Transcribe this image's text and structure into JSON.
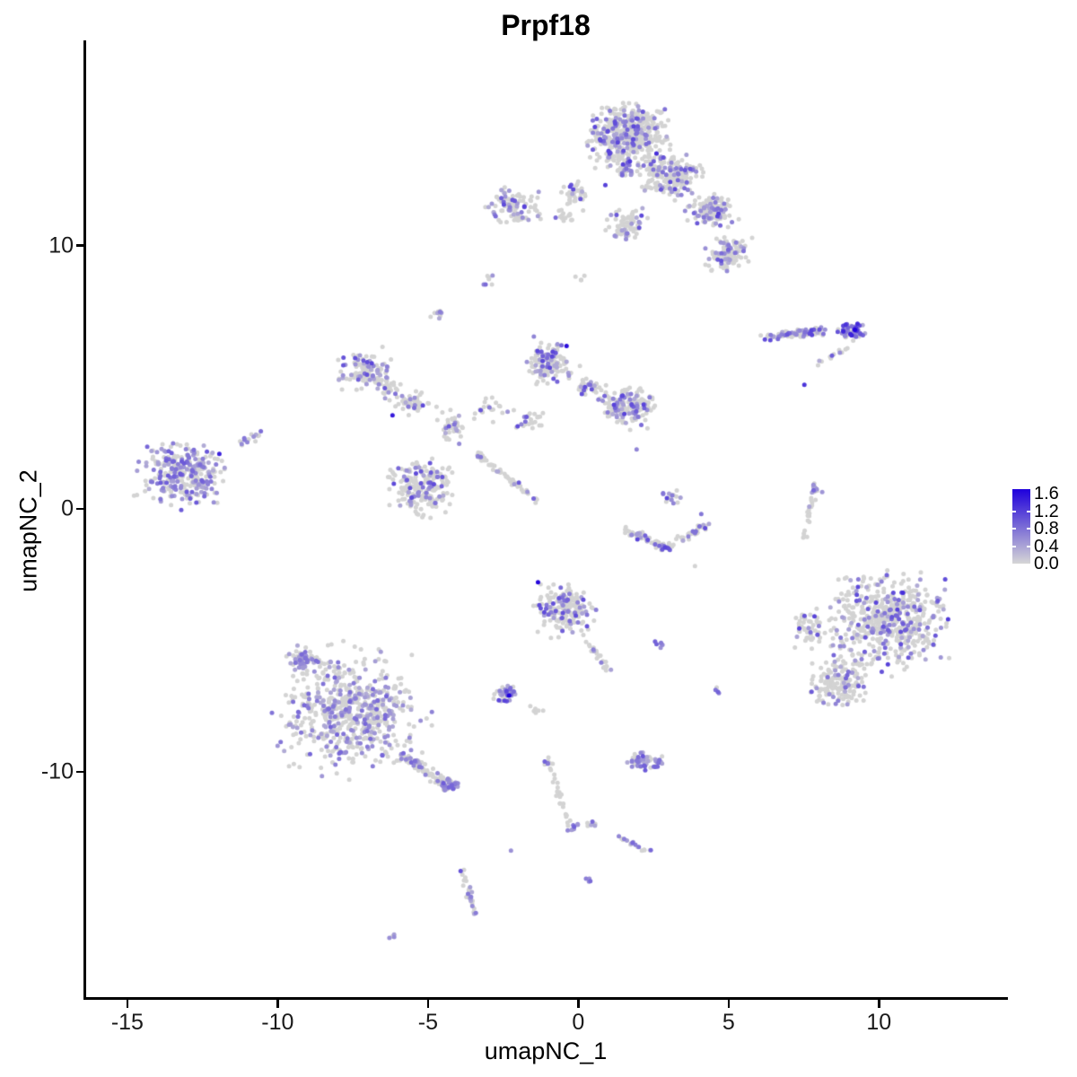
{
  "chart_data": {
    "type": "scatter",
    "title": "Prpf18",
    "xlabel": "umapNC_1",
    "ylabel": "umapNC_2",
    "xlim": [
      -16.4,
      14.2
    ],
    "ylim": [
      -18.6,
      17.8
    ],
    "grid": false,
    "x_ticks": [
      {
        "v": -15,
        "label": "-15"
      },
      {
        "v": -10,
        "label": "-10"
      },
      {
        "v": -5,
        "label": "-5"
      },
      {
        "v": 0,
        "label": "0"
      },
      {
        "v": 5,
        "label": "5"
      },
      {
        "v": 10,
        "label": "10"
      }
    ],
    "y_ticks": [
      {
        "v": 10,
        "label": "10"
      },
      {
        "v": 0,
        "label": "0"
      },
      {
        "v": -10,
        "label": "-10"
      }
    ],
    "colors": {
      "low": "#d3d3d3",
      "high": "#1f00dc",
      "axis": "#000000",
      "background": "#ffffff"
    },
    "legend": {
      "position": "right",
      "value_min": 0.0,
      "value_max": 1.6,
      "ticks": [
        {
          "v": 1.6,
          "label": "1.6"
        },
        {
          "v": 1.2,
          "label": "1.2"
        },
        {
          "v": 0.8,
          "label": "0.8"
        },
        {
          "v": 0.4,
          "label": "0.4"
        },
        {
          "v": 0.0,
          "label": "0.0"
        }
      ]
    },
    "point_radius_px": 2.5,
    "seed": 1234,
    "clusters": [
      {
        "x": 1.64,
        "y": 14.2,
        "rx": 1.7,
        "ry": 1.5,
        "n": 480,
        "f": 0.2
      },
      {
        "x": 3.07,
        "y": 12.66,
        "rx": 1.3,
        "ry": 1.1,
        "n": 220,
        "f": 0.22
      },
      {
        "x": 1.6,
        "y": 12.9,
        "rx": 0.5,
        "ry": 0.5,
        "n": 30,
        "f": 0.6,
        "vmin": 0.4,
        "vmax": 1.2
      },
      {
        "x": 4.39,
        "y": 11.3,
        "rx": 1.05,
        "ry": 0.85,
        "n": 130,
        "f": 0.25
      },
      {
        "x": 4.99,
        "y": 9.69,
        "rx": 0.95,
        "ry": 0.9,
        "n": 115,
        "f": 0.28
      },
      {
        "x": 1.64,
        "y": 10.85,
        "rx": 0.85,
        "ry": 0.85,
        "n": 70,
        "f": 0.2
      },
      {
        "x": -0.15,
        "y": 11.98,
        "rx": 0.6,
        "ry": 0.7,
        "n": 40,
        "f": 0.18
      },
      {
        "x": -2.24,
        "y": 11.54,
        "rx": 1.25,
        "ry": 0.85,
        "n": 85,
        "f": 0.3
      },
      {
        "x": -0.45,
        "y": 11.13,
        "rx": 0.65,
        "ry": 0.3,
        "n": 14,
        "f": 0.15
      },
      {
        "x": -2.99,
        "y": 8.67,
        "rx": 0.28,
        "ry": 0.33,
        "n": 7,
        "f": 0.5
      },
      {
        "x": -4.69,
        "y": 7.37,
        "rx": 0.38,
        "ry": 0.33,
        "n": 9,
        "f": 0.45
      },
      {
        "x": 0.0,
        "y": 8.8,
        "rx": 0.3,
        "ry": 0.25,
        "n": 4,
        "f": 0.3
      },
      {
        "x": 9.1,
        "y": 6.76,
        "rx": 0.62,
        "ry": 0.45,
        "n": 70,
        "f": 0.75,
        "vmax": 1.35
      },
      {
        "x": 7.91,
        "y": 0.78,
        "rx": 0.28,
        "ry": 0.28,
        "n": 8,
        "f": 0.9,
        "vmax": 0.85
      },
      {
        "x": -13.13,
        "y": 1.3,
        "rx": 1.9,
        "ry": 1.55,
        "n": 300,
        "f": 0.45,
        "vmax": 0.95
      },
      {
        "x": -7.07,
        "y": 5.26,
        "rx": 1.1,
        "ry": 1.05,
        "n": 120,
        "f": 0.35
      },
      {
        "x": -5.46,
        "y": 4.03,
        "rx": 0.9,
        "ry": 0.6,
        "n": 50,
        "f": 0.2
      },
      {
        "x": -5.28,
        "y": 0.82,
        "rx": 1.35,
        "ry": 1.35,
        "n": 210,
        "f": 0.25
      },
      {
        "x": -4.18,
        "y": 3.11,
        "rx": 0.55,
        "ry": 0.9,
        "n": 40,
        "f": 0.25
      },
      {
        "x": -6.3,
        "y": 4.6,
        "rx": 0.6,
        "ry": 0.5,
        "n": 25,
        "f": 0.2
      },
      {
        "x": -2.99,
        "y": 3.79,
        "rx": 0.8,
        "ry": 0.6,
        "n": 20,
        "f": 0.2
      },
      {
        "x": -0.99,
        "y": 5.6,
        "rx": 1.1,
        "ry": 1.0,
        "n": 130,
        "f": 0.28
      },
      {
        "x": 1.64,
        "y": 3.89,
        "rx": 1.25,
        "ry": 1.0,
        "n": 170,
        "f": 0.32
      },
      {
        "x": 0.3,
        "y": 4.64,
        "rx": 0.8,
        "ry": 0.5,
        "n": 35,
        "f": 0.2
      },
      {
        "x": -1.64,
        "y": 3.28,
        "rx": 0.8,
        "ry": 0.6,
        "n": 25,
        "f": 0.15
      },
      {
        "x": 3.07,
        "y": 0.48,
        "rx": 0.45,
        "ry": 0.45,
        "n": 18,
        "f": 0.5
      },
      {
        "x": -0.45,
        "y": -3.82,
        "rx": 1.3,
        "ry": 1.25,
        "n": 190,
        "f": 0.3
      },
      {
        "x": 2.72,
        "y": -5.15,
        "rx": 0.25,
        "ry": 0.2,
        "n": 6,
        "f": 0.95,
        "vmin": 0.5,
        "vmax": 0.9
      },
      {
        "x": -2.39,
        "y": -7.03,
        "rx": 0.55,
        "ry": 0.45,
        "n": 40,
        "f": 0.5
      },
      {
        "x": -1.34,
        "y": -7.65,
        "rx": 0.4,
        "ry": 0.3,
        "n": 6,
        "f": 0.2
      },
      {
        "x": -7.61,
        "y": -7.71,
        "rx": 3.1,
        "ry": 2.8,
        "n": 640,
        "f": 0.33,
        "vmax": 0.85
      },
      {
        "x": -9.1,
        "y": -5.77,
        "rx": 0.8,
        "ry": 0.6,
        "n": 60,
        "f": 0.6,
        "vmax": 0.8
      },
      {
        "x": -4.27,
        "y": -10.51,
        "rx": 0.45,
        "ry": 0.4,
        "n": 30,
        "f": 0.85,
        "vmin": 0.4,
        "vmax": 0.9
      },
      {
        "x": -1.04,
        "y": -9.6,
        "rx": 0.25,
        "ry": 0.4,
        "n": 6,
        "f": 0.6
      },
      {
        "x": -0.24,
        "y": -12.1,
        "rx": 0.3,
        "ry": 0.25,
        "n": 8,
        "f": 0.85,
        "vmin": 0.4,
        "vmax": 0.9
      },
      {
        "x": 0.45,
        "y": -11.98,
        "rx": 0.35,
        "ry": 0.2,
        "n": 6,
        "f": 0.5
      },
      {
        "x": 2.18,
        "y": -9.62,
        "rx": 0.85,
        "ry": 0.5,
        "n": 55,
        "f": 0.55,
        "vmax": 0.95
      },
      {
        "x": 0.36,
        "y": -14.13,
        "rx": 0.2,
        "ry": 0.2,
        "n": 4,
        "f": 0.95,
        "vmin": 0.5,
        "vmax": 0.8
      },
      {
        "x": -6.18,
        "y": -16.28,
        "rx": 0.22,
        "ry": 0.18,
        "n": 4,
        "f": 0.9,
        "vmin": 0.4,
        "vmax": 0.7
      },
      {
        "x": 10.3,
        "y": -4.2,
        "rx": 2.6,
        "ry": 2.3,
        "n": 540,
        "f": 0.25
      },
      {
        "x": 8.66,
        "y": -6.62,
        "rx": 1.35,
        "ry": 1.2,
        "n": 170,
        "f": 0.12,
        "vmax": 0.9
      },
      {
        "x": 7.61,
        "y": -4.57,
        "rx": 0.7,
        "ry": 1.0,
        "n": 50,
        "f": 0.2
      },
      {
        "x": 4.63,
        "y": -6.89,
        "rx": 0.3,
        "ry": 0.25,
        "n": 4,
        "f": 0.5
      }
    ],
    "line_clusters": [
      {
        "x1": 6.18,
        "y1": 6.5,
        "x2": 8.2,
        "y2": 6.78,
        "w": 0.22,
        "n": 75,
        "f": 0.6,
        "vmax": 1.1
      },
      {
        "x1": 7.91,
        "y1": 5.49,
        "x2": 8.96,
        "y2": 6.1,
        "w": 0.15,
        "n": 12,
        "f": 0.3
      },
      {
        "x1": 7.85,
        "y1": 0.96,
        "x2": 7.55,
        "y2": -1.16,
        "w": 0.16,
        "n": 26,
        "f": 0.12
      },
      {
        "x1": -11.4,
        "y1": 2.4,
        "x2": -10.5,
        "y2": 2.9,
        "w": 0.18,
        "n": 14,
        "f": 0.4
      },
      {
        "x1": -3.37,
        "y1": 2.08,
        "x2": -1.34,
        "y2": 0.27,
        "w": 0.14,
        "n": 60,
        "f": 0.08
      },
      {
        "x1": 1.49,
        "y1": -0.75,
        "x2": 2.9,
        "y2": -1.5,
        "w": 0.2,
        "n": 55,
        "f": 0.35
      },
      {
        "x1": 2.9,
        "y1": -1.5,
        "x2": 4.39,
        "y2": -0.55,
        "w": 0.2,
        "n": 45,
        "f": 0.3
      },
      {
        "x1": 0.3,
        "y1": -5.09,
        "x2": 0.99,
        "y2": -6.11,
        "w": 0.15,
        "n": 25,
        "f": 0.12
      },
      {
        "x1": -5.97,
        "y1": -9.28,
        "x2": -4.3,
        "y2": -10.5,
        "w": 0.3,
        "n": 80,
        "f": 0.3,
        "vmax": 0.85
      },
      {
        "x1": -1.04,
        "y1": -9.52,
        "x2": -0.24,
        "y2": -12.25,
        "w": 0.16,
        "n": 26,
        "f": 0.12
      },
      {
        "x1": 1.28,
        "y1": -12.42,
        "x2": 2.48,
        "y2": -13.11,
        "w": 0.15,
        "n": 18,
        "f": 0.4
      },
      {
        "x1": -3.85,
        "y1": -13.72,
        "x2": -3.43,
        "y2": -15.43,
        "w": 0.18,
        "n": 30,
        "f": 0.45
      },
      {
        "x1": -2.5,
        "y1": 10.9,
        "x2": -1.2,
        "y2": 11.15,
        "w": 0.15,
        "n": 16,
        "f": 0.25
      }
    ],
    "highlight_points": [
      {
        "x": -0.39,
        "y": 6.18,
        "v": 1.5
      },
      {
        "x": -1.34,
        "y": -2.8,
        "v": 1.55
      },
      {
        "x": -2.3,
        "y": -7.1,
        "v": 1.6
      },
      {
        "x": 9.2,
        "y": 6.8,
        "v": 1.6
      },
      {
        "x": 7.52,
        "y": 4.71,
        "v": 1.2
      },
      {
        "x": -11.94,
        "y": 2.08,
        "v": 1.35
      },
      {
        "x": 2.6,
        "y": 13.5,
        "v": 1.25
      },
      {
        "x": 0.9,
        "y": 12.3,
        "v": 1.1
      },
      {
        "x": -6.18,
        "y": 3.55,
        "v": 1.4
      },
      {
        "x": 10.8,
        "y": -3.2,
        "v": 1.25
      },
      {
        "x": 12.3,
        "y": -4.2,
        "v": 1.15
      },
      {
        "x": 1.94,
        "y": 2.25,
        "v": 0.6
      },
      {
        "x": 4.09,
        "y": -0.2,
        "v": 0.7
      },
      {
        "x": 3.88,
        "y": -2.18,
        "v": 0
      },
      {
        "x": 7.76,
        "y": -6.96,
        "v": 0.9
      },
      {
        "x": -2.24,
        "y": -13.0,
        "v": 0.5
      }
    ]
  }
}
